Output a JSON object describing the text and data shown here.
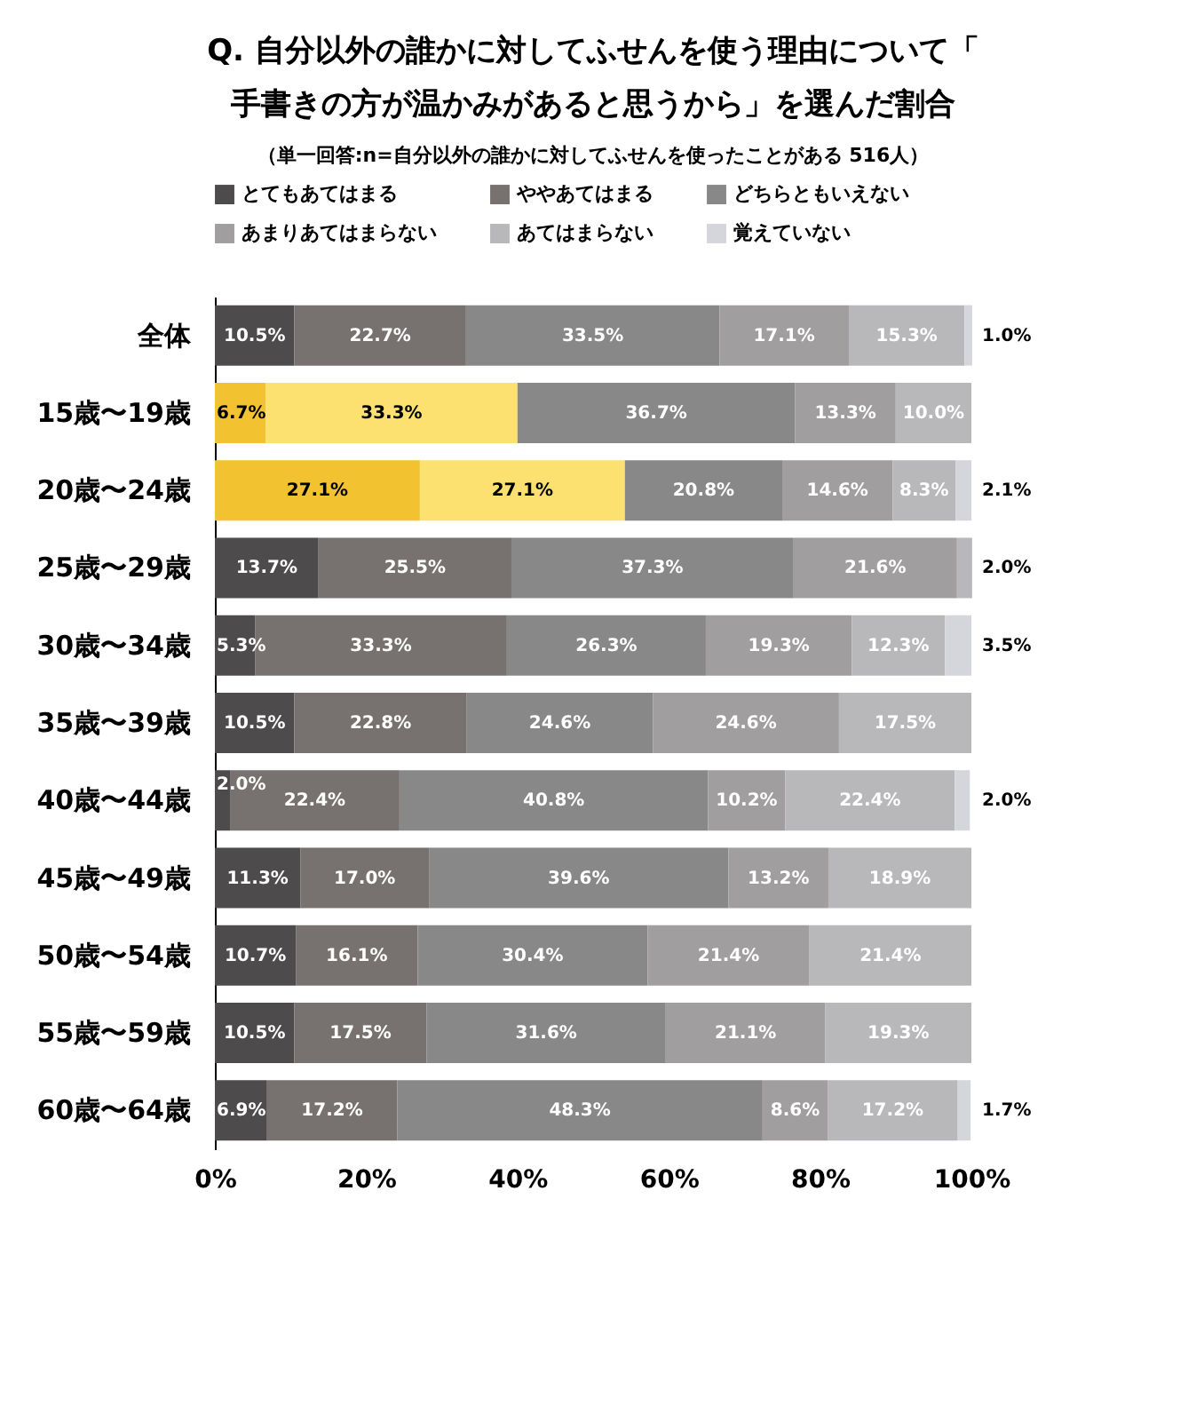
{
  "chart_data": {
    "type": "bar",
    "orientation": "horizontal",
    "stacked": true,
    "title": "Q. 自分以外の誰かに対してふせんを使う理由について「手書きの方が温かみがあると思うから」を選んだ割合",
    "subtitle": "（単一回答:n=自分以外の誰かに対してふせんを使ったことがある 516人）",
    "categories": [
      "全体",
      "15歳〜19歳",
      "20歳〜24歳",
      "25歳〜29歳",
      "30歳〜34歳",
      "35歳〜39歳",
      "40歳〜44歳",
      "45歳〜49歳",
      "50歳〜54歳",
      "55歳〜59歳",
      "60歳〜64歳"
    ],
    "xlim": [
      0,
      100
    ],
    "xticks": [
      {
        "value": 0,
        "label": "0%"
      },
      {
        "value": 20,
        "label": "20%"
      },
      {
        "value": 40,
        "label": "40%"
      },
      {
        "value": 60,
        "label": "60%"
      },
      {
        "value": 80,
        "label": "80%"
      },
      {
        "value": 100,
        "label": "100%"
      }
    ],
    "grid": false,
    "legend": "top",
    "series": [
      {
        "name": "とてもあてはまる",
        "color": "#4d4b4b",
        "colors": [
          "#4d4b4b",
          "#f2c230",
          "#f2c230",
          "#4d4b4b",
          "#4d4b4b",
          "#4d4b4b",
          "#4d4b4b",
          "#4d4b4b",
          "#4d4b4b",
          "#4d4b4b",
          "#4d4b4b"
        ],
        "values": [
          10.5,
          6.7,
          27.1,
          13.7,
          5.3,
          10.5,
          2.0,
          11.3,
          10.7,
          10.5,
          6.9
        ],
        "value_labels": [
          "10.5%",
          "6.7%",
          "27.1%",
          "13.7%",
          "5.3%",
          "10.5%",
          "2.0%",
          "11.3%",
          "10.7%",
          "10.5%",
          "6.9%"
        ]
      },
      {
        "name": "ややあてはまる",
        "color": "#77726f",
        "colors": [
          "#77726f",
          "#fde170",
          "#fde170",
          "#77726f",
          "#77726f",
          "#77726f",
          "#77726f",
          "#77726f",
          "#77726f",
          "#77726f",
          "#77726f"
        ],
        "values": [
          22.7,
          33.3,
          27.1,
          25.5,
          33.3,
          22.8,
          22.4,
          17.0,
          16.1,
          17.5,
          17.2
        ],
        "value_labels": [
          "22.7%",
          "33.3%",
          "27.1%",
          "25.5%",
          "33.3%",
          "22.8%",
          "22.4%",
          "17.0%",
          "16.1%",
          "17.5%",
          "17.2%"
        ]
      },
      {
        "name": "どちらともいえない",
        "color": "#888888",
        "values": [
          33.5,
          36.7,
          20.8,
          37.3,
          26.3,
          24.6,
          40.8,
          39.6,
          30.4,
          31.6,
          48.3
        ],
        "value_labels": [
          "33.5%",
          "36.7%",
          "20.8%",
          "37.3%",
          "26.3%",
          "24.6%",
          "40.8%",
          "39.6%",
          "30.4%",
          "31.6%",
          "48.3%"
        ]
      },
      {
        "name": "あまりあてはまらない",
        "color": "#a09e9e",
        "values": [
          17.1,
          13.3,
          14.6,
          21.6,
          19.3,
          24.6,
          10.2,
          13.2,
          21.4,
          21.1,
          8.6
        ],
        "value_labels": [
          "17.1%",
          "13.3%",
          "14.6%",
          "21.6%",
          "19.3%",
          "24.6%",
          "10.2%",
          "13.2%",
          "21.4%",
          "21.1%",
          "8.6%"
        ]
      },
      {
        "name": "あてはまらない",
        "color": "#b8b7ba",
        "values": [
          15.3,
          10.0,
          8.3,
          2.0,
          12.3,
          17.5,
          22.4,
          18.9,
          21.4,
          19.3,
          17.2
        ],
        "value_labels": [
          "15.3%",
          "10.0%",
          "8.3%",
          "2.0%",
          "12.3%",
          "17.5%",
          "22.4%",
          "18.9%",
          "21.4%",
          "19.3%",
          "17.2%"
        ]
      },
      {
        "name": "覚えていない",
        "color": "#d5d5dc",
        "values": [
          1.0,
          null,
          2.1,
          null,
          3.5,
          null,
          2.0,
          null,
          null,
          null,
          1.7
        ],
        "value_labels": [
          "1.0%",
          null,
          "2.1%",
          null,
          "3.5%",
          null,
          "2.0%",
          null,
          null,
          null,
          "1.7%"
        ]
      }
    ]
  }
}
